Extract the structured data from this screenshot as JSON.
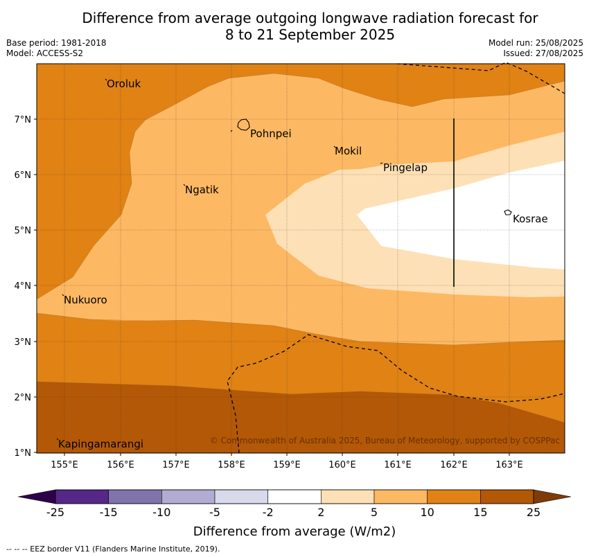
{
  "title_line1": "Difference from average outgoing longwave radiation forecast for",
  "title_line2": "8 to 21 September 2025",
  "base_period": "Base period: 1981-2018",
  "model": "Model: ACCESS-S2",
  "model_run": "Model run: 25/08/2025",
  "issued": "Issued: 27/08/2025",
  "copyright": "© Commonwealth of Australia 2025, Bureau of Meteorology, supported by COSPPac",
  "footnote": "--  --  -- EEZ border V11 (Flanders Marine Institute, 2019).",
  "legend_label": "Difference from average (W/m2)",
  "x_ticks": [
    "155°E",
    "156°E",
    "157°E",
    "158°E",
    "159°E",
    "160°E",
    "161°E",
    "162°E",
    "163°E"
  ],
  "y_ticks": [
    "7°N",
    "6°N",
    "5°N",
    "4°N",
    "3°N",
    "2°N",
    "1°N"
  ],
  "places": [
    "Oroluk",
    "Pohnpei",
    "Mokil",
    "Pingelap",
    "Ngatik",
    "Kosrae",
    "Nukuoro",
    "Kapingamarangi"
  ],
  "colorbar": {
    "ticks": [
      "-25",
      "-15",
      "-10",
      "-5",
      "-2",
      "2",
      "5",
      "10",
      "15",
      "25"
    ],
    "colors": [
      "#542788",
      "#8073ac",
      "#b2abd2",
      "#d8daeb",
      "#ffffff",
      "#fee0b6",
      "#fdb863",
      "#e08214",
      "#b35806"
    ],
    "under_color": "#2d004b",
    "over_color": "#7f3b08"
  },
  "fill_colors": {
    "c2_5": "#fee0b6",
    "c5_10": "#fdb863",
    "c10_15": "#e08214",
    "c15_25": "#b35806"
  }
}
